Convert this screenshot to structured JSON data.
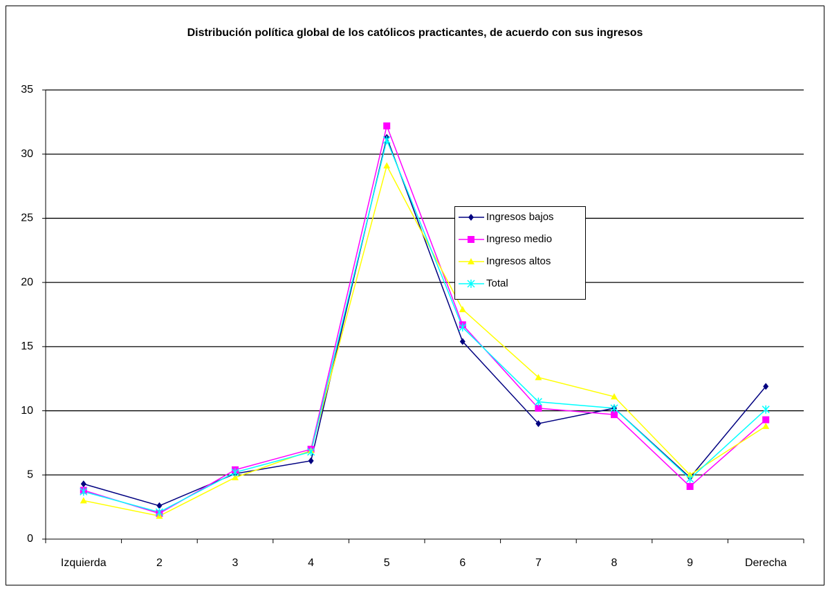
{
  "chart_data": {
    "type": "line",
    "title": "Distribución política global de los católicos practicantes, de acuerdo con sus ingresos",
    "categories": [
      "Izquierda",
      "2",
      "3",
      "4",
      "5",
      "6",
      "7",
      "8",
      "9",
      "Derecha"
    ],
    "series": [
      {
        "name": "Ingresos bajos",
        "color": "#000080",
        "marker": "diamond",
        "values": [
          4.3,
          2.6,
          5.1,
          6.1,
          31.3,
          15.4,
          9.0,
          10.2,
          4.8,
          11.9
        ]
      },
      {
        "name": "Ingreso medio",
        "color": "#ff00ff",
        "marker": "square",
        "values": [
          3.8,
          2.0,
          5.4,
          7.0,
          32.2,
          16.7,
          10.2,
          9.7,
          4.1,
          9.3
        ]
      },
      {
        "name": "Ingresos altos",
        "color": "#ffff00",
        "marker": "triangle",
        "values": [
          3.0,
          1.8,
          4.8,
          6.9,
          29.1,
          17.9,
          12.6,
          11.1,
          5.0,
          8.8
        ]
      },
      {
        "name": "Total",
        "color": "#00ffff",
        "marker": "star",
        "values": [
          3.7,
          2.1,
          5.2,
          6.8,
          31.1,
          16.5,
          10.7,
          10.2,
          4.7,
          10.1
        ]
      }
    ],
    "ylim": [
      0,
      35
    ],
    "yticks": [
      0,
      5,
      10,
      15,
      20,
      25,
      30,
      35
    ],
    "grid": true
  }
}
